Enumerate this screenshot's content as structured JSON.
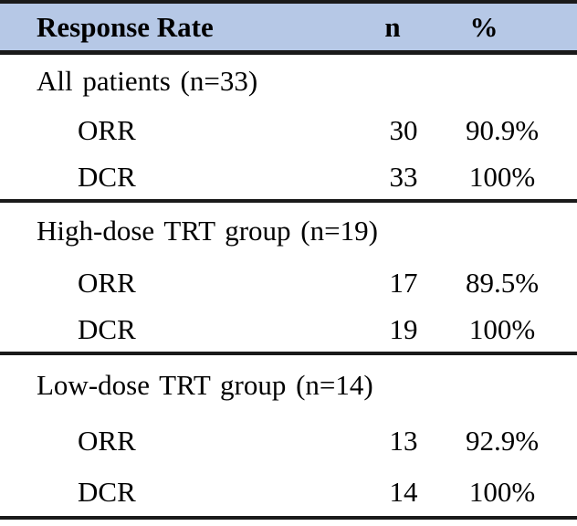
{
  "header": {
    "col_label": "Response Rate",
    "col_n": "n",
    "col_pct": "%"
  },
  "colors": {
    "header_bg": "#b6c8e6",
    "border": "#1a1a1a",
    "text": "#000000"
  },
  "sections": [
    {
      "group_label": "All patients (n=33)",
      "rows": [
        {
          "label": "ORR",
          "n": "30",
          "pct": "90.9%"
        },
        {
          "label": "DCR",
          "n": "33",
          "pct": "100%"
        }
      ]
    },
    {
      "group_label": "High-dose TRT group (n=19)",
      "rows": [
        {
          "label": "ORR",
          "n": "17",
          "pct": "89.5%"
        },
        {
          "label": "DCR",
          "n": "19",
          "pct": "100%"
        }
      ]
    },
    {
      "group_label": "Low-dose TRT group (n=14)",
      "rows": [
        {
          "label": "ORR",
          "n": "13",
          "pct": "92.9%"
        },
        {
          "label": "DCR",
          "n": "14",
          "pct": "100%"
        }
      ]
    }
  ]
}
